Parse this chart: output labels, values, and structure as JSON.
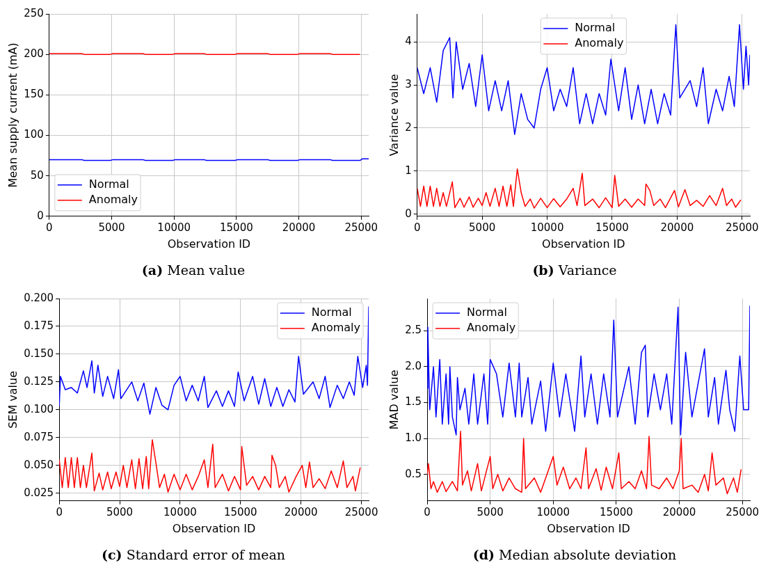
{
  "chart_data": [
    {
      "type": "line",
      "title": "(a) Mean value",
      "xlabel": "Observation ID",
      "ylabel": "Mean supply current (mA)",
      "xlim": [
        0,
        25600
      ],
      "xticks": [
        0,
        5000,
        10000,
        15000,
        20000,
        25000
      ],
      "ylim": [
        0,
        250
      ],
      "yticks": [
        0,
        50,
        100,
        150,
        200,
        250
      ],
      "grid": true,
      "legend": "bottom left",
      "series": [
        {
          "name": "Normal",
          "color": "#0000ff",
          "x": [
            0,
            2600,
            2800,
            4900,
            5100,
            7500,
            7700,
            9900,
            10100,
            12400,
            12600,
            14900,
            15100,
            17500,
            17700,
            19900,
            20100,
            22500,
            22700,
            24900,
            25100,
            25600
          ],
          "values": [
            70,
            70,
            69,
            69,
            70,
            70,
            69,
            69,
            70,
            70,
            69,
            69,
            70,
            70,
            69,
            69,
            70,
            70,
            69,
            69,
            71,
            71
          ]
        },
        {
          "name": "Anomaly",
          "color": "#ff0000",
          "x": [
            0,
            2600,
            2800,
            4900,
            5100,
            7500,
            7700,
            9900,
            10100,
            12400,
            12600,
            14900,
            15100,
            17500,
            17700,
            19900,
            20100,
            22500,
            22700,
            24900
          ],
          "values": [
            201,
            201,
            200,
            200,
            201,
            201,
            200,
            200,
            201,
            201,
            200,
            200,
            201,
            201,
            200,
            200,
            201,
            201,
            200,
            200
          ]
        }
      ]
    },
    {
      "type": "line",
      "title": "(b) Variance",
      "xlabel": "Observation ID",
      "ylabel": "Variance value",
      "xlim": [
        0,
        25600
      ],
      "xticks": [
        0,
        5000,
        10000,
        15000,
        20000,
        25000
      ],
      "ylim": [
        -0.05,
        4.65
      ],
      "yticks": [
        0,
        1,
        2,
        3,
        4
      ],
      "grid": true,
      "legend": "top",
      "series": [
        {
          "name": "Normal",
          "color": "#0000ff",
          "x": [
            0,
            500,
            1000,
            1500,
            2000,
            2500,
            2750,
            3000,
            3500,
            4000,
            4500,
            5000,
            5500,
            6000,
            6500,
            7000,
            7500,
            8000,
            8500,
            9000,
            9500,
            10000,
            10500,
            11000,
            11500,
            12000,
            12500,
            13000,
            13500,
            14000,
            14500,
            14900,
            15500,
            16000,
            16500,
            17000,
            17500,
            18000,
            18500,
            19000,
            19500,
            19900,
            20200,
            21000,
            21500,
            22000,
            22400,
            23000,
            23500,
            24000,
            24400,
            24800,
            25100,
            25300,
            25500,
            25600
          ],
          "values": [
            3.4,
            2.8,
            3.4,
            2.6,
            3.8,
            4.1,
            2.7,
            4.0,
            2.9,
            3.5,
            2.5,
            3.7,
            2.4,
            3.1,
            2.4,
            3.1,
            1.85,
            2.8,
            2.2,
            2.0,
            2.9,
            3.4,
            2.4,
            2.9,
            2.5,
            3.4,
            2.1,
            2.8,
            2.1,
            2.8,
            2.3,
            3.6,
            2.4,
            3.4,
            2.2,
            3.0,
            2.1,
            2.9,
            2.1,
            2.8,
            2.3,
            4.4,
            2.7,
            3.1,
            2.5,
            3.4,
            2.1,
            2.9,
            2.4,
            3.2,
            2.5,
            4.4,
            2.9,
            3.9,
            3.0,
            3.7
          ]
        },
        {
          "name": "Anomaly",
          "color": "#ff0000",
          "x": [
            0,
            250,
            500,
            750,
            1000,
            1250,
            1500,
            1750,
            2000,
            2250,
            2700,
            2900,
            3300,
            3600,
            4000,
            4300,
            4700,
            5000,
            5300,
            5600,
            6000,
            6300,
            6600,
            6900,
            7200,
            7400,
            7700,
            8000,
            8300,
            8700,
            9000,
            9500,
            10000,
            10500,
            11000,
            11500,
            12000,
            12300,
            12700,
            12900,
            13500,
            14000,
            14500,
            15000,
            15200,
            15500,
            16000,
            16500,
            17000,
            17500,
            17600,
            17900,
            18200,
            18700,
            19100,
            19800,
            20100,
            20600,
            21000,
            21500,
            22000,
            22500,
            23000,
            23500,
            23800,
            24200,
            24500,
            24900
          ],
          "values": [
            0.6,
            0.18,
            0.65,
            0.18,
            0.65,
            0.18,
            0.6,
            0.18,
            0.5,
            0.18,
            0.75,
            0.15,
            0.37,
            0.16,
            0.4,
            0.16,
            0.37,
            0.2,
            0.5,
            0.18,
            0.6,
            0.18,
            0.65,
            0.18,
            0.68,
            0.18,
            1.05,
            0.5,
            0.18,
            0.35,
            0.14,
            0.37,
            0.15,
            0.36,
            0.17,
            0.35,
            0.6,
            0.2,
            0.95,
            0.2,
            0.35,
            0.15,
            0.38,
            0.15,
            0.9,
            0.18,
            0.35,
            0.16,
            0.35,
            0.2,
            0.7,
            0.55,
            0.2,
            0.35,
            0.15,
            0.55,
            0.17,
            0.57,
            0.2,
            0.32,
            0.18,
            0.43,
            0.2,
            0.6,
            0.2,
            0.35,
            0.16,
            0.33
          ]
        }
      ]
    },
    {
      "type": "line",
      "title": "(c) Standard error of mean",
      "xlabel": "Observation ID",
      "ylabel": "SEM value",
      "xlim": [
        0,
        25600
      ],
      "xticks": [
        0,
        5000,
        10000,
        15000,
        20000,
        25000
      ],
      "ylim": [
        0.018,
        0.2
      ],
      "yticks": [
        {
          "value": 0.025,
          "label": "0.025"
        },
        {
          "value": 0.05,
          "label": "0.050"
        },
        {
          "value": 0.075,
          "label": "0.075"
        },
        {
          "value": 0.1,
          "label": "0.100"
        },
        {
          "value": 0.125,
          "label": "0.125"
        },
        {
          "value": 0.15,
          "label": "0.150"
        },
        {
          "value": 0.175,
          "label": "0.175"
        },
        {
          "value": 0.2,
          "label": "0.200"
        }
      ],
      "grid": true,
      "legend": "top right",
      "series": [
        {
          "name": "Normal",
          "color": "#0000ff",
          "x": [
            0,
            100,
            500,
            1000,
            1500,
            2000,
            2300,
            2700,
            2900,
            3200,
            3600,
            4000,
            4500,
            4900,
            5100,
            6000,
            6500,
            7000,
            7500,
            8000,
            8500,
            9000,
            9500,
            10000,
            10500,
            11000,
            11500,
            12000,
            12300,
            13000,
            13500,
            14000,
            14500,
            14800,
            15300,
            16000,
            16500,
            17000,
            17500,
            18000,
            18500,
            19000,
            19500,
            19800,
            20200,
            21000,
            21500,
            22000,
            22400,
            23000,
            23500,
            24000,
            24400,
            24700,
            25100,
            25400,
            25500,
            25600
          ],
          "values": [
            0.103,
            0.13,
            0.118,
            0.12,
            0.115,
            0.135,
            0.12,
            0.144,
            0.115,
            0.14,
            0.112,
            0.13,
            0.11,
            0.136,
            0.11,
            0.125,
            0.108,
            0.124,
            0.096,
            0.12,
            0.104,
            0.1,
            0.122,
            0.13,
            0.108,
            0.122,
            0.108,
            0.13,
            0.102,
            0.117,
            0.103,
            0.117,
            0.103,
            0.134,
            0.108,
            0.13,
            0.105,
            0.128,
            0.103,
            0.12,
            0.103,
            0.118,
            0.107,
            0.148,
            0.114,
            0.125,
            0.11,
            0.13,
            0.102,
            0.122,
            0.11,
            0.125,
            0.113,
            0.148,
            0.12,
            0.14,
            0.122,
            0.193
          ]
        },
        {
          "name": "Anomaly",
          "color": "#ff0000",
          "x": [
            0,
            250,
            500,
            750,
            1000,
            1250,
            1500,
            1750,
            2000,
            2250,
            2700,
            2900,
            3300,
            3600,
            4000,
            4300,
            4700,
            5000,
            5300,
            5600,
            6000,
            6300,
            6600,
            6900,
            7200,
            7400,
            7700,
            8000,
            8300,
            8700,
            9000,
            9500,
            10000,
            10500,
            11000,
            11500,
            12000,
            12300,
            12700,
            12900,
            13500,
            14000,
            14500,
            15000,
            15100,
            15500,
            16000,
            16500,
            17000,
            17500,
            17600,
            17900,
            18200,
            18700,
            19000,
            19600,
            20100,
            20400,
            20700,
            21000,
            21500,
            22000,
            22500,
            23000,
            23500,
            23800,
            24300,
            24500,
            24900
          ],
          "values": [
            0.055,
            0.03,
            0.057,
            0.03,
            0.057,
            0.03,
            0.057,
            0.03,
            0.05,
            0.03,
            0.061,
            0.027,
            0.043,
            0.028,
            0.044,
            0.029,
            0.044,
            0.031,
            0.05,
            0.03,
            0.055,
            0.029,
            0.056,
            0.029,
            0.058,
            0.029,
            0.073,
            0.052,
            0.03,
            0.042,
            0.026,
            0.042,
            0.028,
            0.042,
            0.028,
            0.04,
            0.055,
            0.03,
            0.069,
            0.03,
            0.042,
            0.027,
            0.04,
            0.028,
            0.067,
            0.032,
            0.04,
            0.028,
            0.04,
            0.03,
            0.059,
            0.05,
            0.03,
            0.04,
            0.026,
            0.04,
            0.05,
            0.03,
            0.053,
            0.03,
            0.038,
            0.029,
            0.045,
            0.03,
            0.054,
            0.03,
            0.04,
            0.027,
            0.048
          ]
        }
      ]
    },
    {
      "type": "line",
      "title": "(d) Median absolute deviation",
      "xlabel": "Observation ID",
      "ylabel": "MAD value",
      "xlim": [
        0,
        25600
      ],
      "xticks": [
        0,
        5000,
        10000,
        15000,
        20000,
        25000
      ],
      "ylim": [
        0.13,
        2.95
      ],
      "yticks": [
        0.5,
        {
          "value": 1,
          "label": "1.0"
        },
        1.5,
        {
          "value": 2,
          "label": "2.0"
        },
        2.5
      ],
      "grid": true,
      "legend": "top left",
      "series": [
        {
          "name": "Normal",
          "color": "#0000ff",
          "x": [
            0,
            50,
            200,
            500,
            700,
            1000,
            1200,
            1500,
            1700,
            1800,
            2000,
            2300,
            2400,
            2600,
            3000,
            3300,
            3700,
            4000,
            4500,
            4800,
            5000,
            5500,
            6000,
            6500,
            7000,
            7300,
            7500,
            8000,
            8300,
            9000,
            9400,
            10000,
            10500,
            11000,
            11700,
            12200,
            12500,
            13000,
            13500,
            14000,
            14500,
            14800,
            15100,
            16000,
            16500,
            17000,
            17300,
            17500,
            18000,
            18500,
            19000,
            19400,
            19900,
            20100,
            20500,
            21000,
            22000,
            22300,
            22800,
            23100,
            23700,
            24000,
            24400,
            24800,
            25100,
            25500,
            25600
          ],
          "values": [
            1.7,
            2.55,
            1.4,
            2.0,
            1.3,
            2.1,
            1.2,
            1.9,
            1.2,
            2.0,
            1.3,
            1.05,
            1.85,
            1.4,
            1.7,
            1.2,
            1.9,
            1.2,
            1.9,
            1.2,
            2.1,
            1.9,
            1.3,
            2.05,
            1.3,
            2.05,
            1.3,
            1.85,
            1.2,
            1.8,
            1.1,
            2.05,
            1.3,
            1.9,
            1.1,
            2.15,
            1.3,
            1.9,
            1.2,
            1.9,
            1.3,
            2.65,
            1.3,
            2.0,
            1.2,
            2.2,
            2.3,
            1.3,
            1.9,
            1.4,
            1.9,
            1.2,
            2.83,
            1.05,
            2.2,
            1.3,
            2.25,
            1.3,
            1.85,
            1.2,
            1.95,
            1.4,
            1.1,
            2.15,
            1.4,
            1.4,
            2.85
          ]
        },
        {
          "name": "Anomaly",
          "color": "#ff0000",
          "x": [
            0,
            100,
            300,
            500,
            800,
            1200,
            1500,
            2000,
            2400,
            2650,
            2800,
            3200,
            3500,
            4000,
            4300,
            5000,
            5200,
            5600,
            6000,
            6500,
            7000,
            7500,
            7650,
            7800,
            8500,
            9000,
            9500,
            10000,
            10300,
            10800,
            11300,
            11800,
            12200,
            12600,
            12800,
            13400,
            13800,
            14200,
            14700,
            15200,
            15400,
            16000,
            16500,
            17000,
            17400,
            17600,
            17800,
            18400,
            19000,
            19500,
            20000,
            20150,
            20300,
            21000,
            21500,
            22000,
            22300,
            22600,
            22900,
            23500,
            23800,
            24300,
            24600,
            24900
          ],
          "values": [
            0.5,
            0.65,
            0.3,
            0.4,
            0.25,
            0.4,
            0.26,
            0.4,
            0.27,
            1.1,
            0.35,
            0.55,
            0.27,
            0.65,
            0.27,
            0.75,
            0.3,
            0.5,
            0.27,
            0.45,
            0.3,
            0.25,
            1.0,
            0.3,
            0.45,
            0.25,
            0.5,
            0.75,
            0.35,
            0.6,
            0.3,
            0.45,
            0.3,
            0.87,
            0.3,
            0.58,
            0.28,
            0.6,
            0.3,
            0.8,
            0.3,
            0.4,
            0.3,
            0.55,
            0.3,
            1.03,
            0.35,
            0.3,
            0.45,
            0.3,
            0.55,
            1.0,
            0.3,
            0.35,
            0.25,
            0.5,
            0.27,
            0.8,
            0.35,
            0.45,
            0.23,
            0.45,
            0.25,
            0.57
          ]
        }
      ]
    }
  ]
}
